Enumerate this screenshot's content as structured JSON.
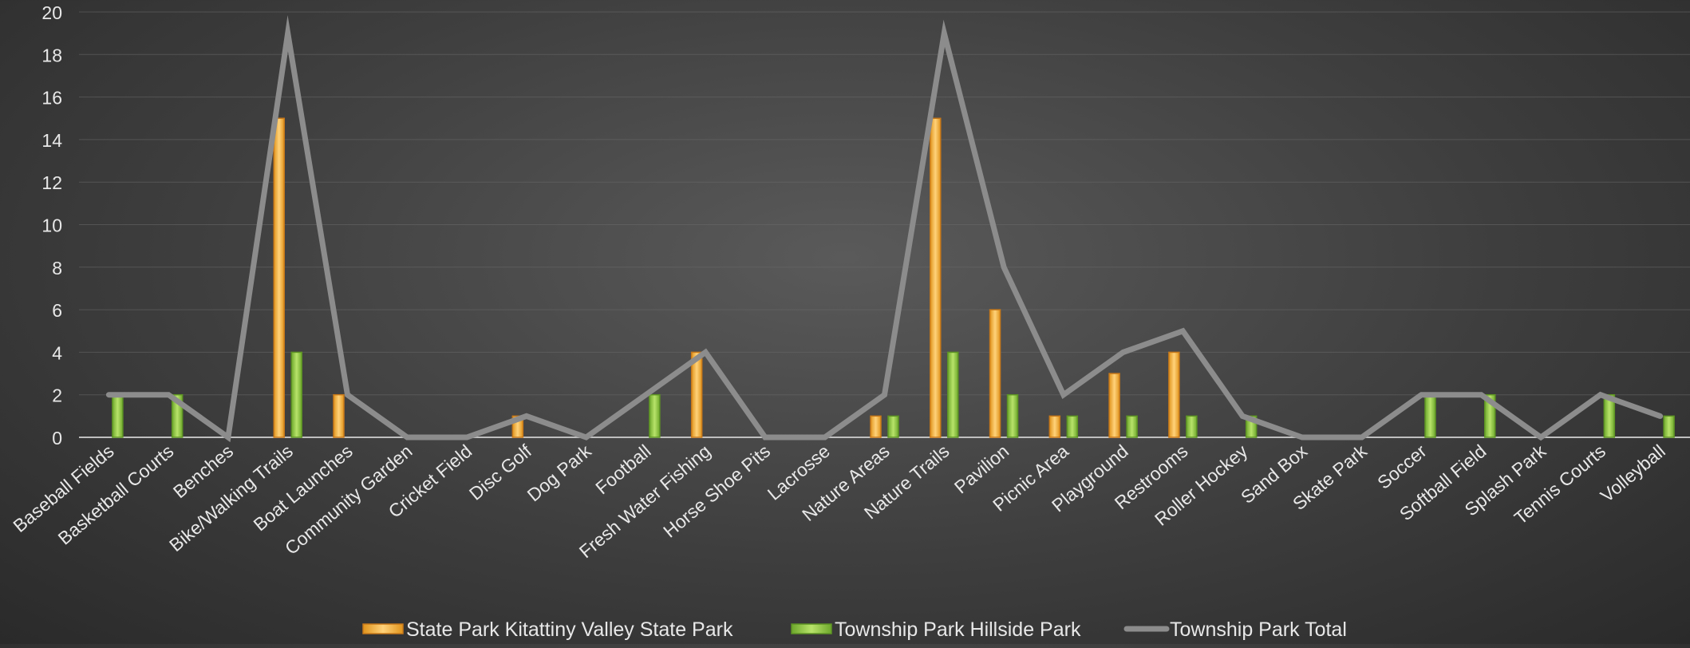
{
  "chart_data": {
    "type": "bar",
    "title": "",
    "xlabel": "",
    "ylabel": "",
    "ylim": [
      0,
      20
    ],
    "yticks": [
      0,
      2,
      4,
      6,
      8,
      10,
      12,
      14,
      16,
      18,
      20
    ],
    "grid": true,
    "legend_position": "bottom",
    "categories": [
      "Baseball Fields",
      "Basketball Courts",
      "Benches",
      "Bike/Walking Trails",
      "Boat Launches",
      "Community Garden",
      "Cricket Field",
      "Disc Golf",
      "Dog Park",
      "Football",
      "Fresh Water Fishing",
      "Horse Shoe Pits",
      "Lacrosse",
      "Nature Areas",
      "Nature Trails",
      "Pavilion",
      "Picnic Area",
      "Playground",
      "Restrooms",
      "Roller Hockey",
      "Sand Box",
      "Skate Park",
      "Soccer",
      "Softball Field",
      "Splash Park",
      "Tennis Courts",
      "Volleyball"
    ],
    "series": [
      {
        "name": "State Park Kitattiny Valley State Park",
        "kind": "bar",
        "color": "#f5b342",
        "values": [
          0,
          0,
          0,
          15,
          2,
          0,
          0,
          1,
          0,
          0,
          4,
          0,
          0,
          1,
          15,
          6,
          1,
          3,
          4,
          0,
          0,
          0,
          0,
          0,
          0,
          0,
          0
        ]
      },
      {
        "name": "Township Park Hillside Park",
        "kind": "bar",
        "color": "#8fc741",
        "values": [
          2,
          2,
          0,
          4,
          0,
          0,
          0,
          0,
          0,
          2,
          0,
          0,
          0,
          1,
          4,
          2,
          1,
          1,
          1,
          1,
          0,
          0,
          2,
          2,
          0,
          2,
          1
        ]
      },
      {
        "name": "Township Park Total",
        "kind": "line",
        "color": "#8c8c8c",
        "values": [
          2,
          2,
          0,
          19,
          2,
          0,
          0,
          1,
          0,
          2,
          4,
          0,
          0,
          2,
          19,
          8,
          2,
          4,
          5,
          1,
          0,
          0,
          2,
          2,
          0,
          2,
          1
        ]
      }
    ]
  }
}
